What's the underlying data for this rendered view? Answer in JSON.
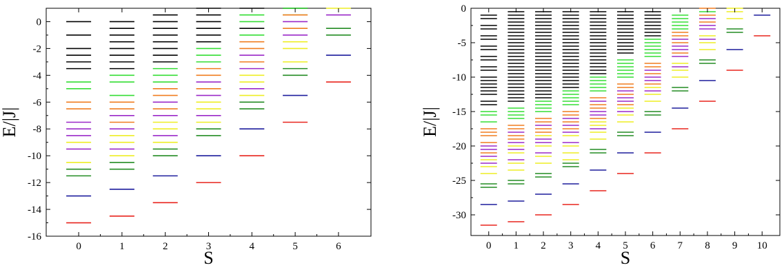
{
  "chart_data": [
    {
      "type": "scatter",
      "marker": "horizontal-dash",
      "xlabel": "S",
      "ylabel": "E/|J|",
      "xlim": [
        -0.75,
        6.75
      ],
      "ylim": [
        -16,
        1
      ],
      "xticks": [
        0,
        1,
        2,
        3,
        4,
        5,
        6
      ],
      "yticks": [
        0,
        -2,
        -4,
        -6,
        -8,
        -10,
        -12,
        -14,
        -16
      ],
      "grid": false,
      "colors": {
        "black": "#000000",
        "green": "#33dd33",
        "darkgreen": "#228b22",
        "orange": "#f07c1e",
        "yellow": "#eeee22",
        "purple": "#9a28c8",
        "blue": "#1c1c9c",
        "red": "#e8231c"
      },
      "levels": [
        {
          "S": 0,
          "black": [
            0,
            -1,
            -2,
            -2.5,
            -3,
            -3.5
          ],
          "green": [
            -4.5,
            -5
          ],
          "orange": [
            -6,
            -6.5
          ],
          "purple": [
            -7.5,
            -8,
            -8.5,
            -9.5
          ],
          "yellow": [
            -9,
            -10.5
          ],
          "darkgreen": [
            -11,
            -11.5
          ],
          "blue": [
            -13
          ],
          "red": [
            -15
          ]
        },
        {
          "S": 1,
          "black": [
            0,
            -0.5,
            -1,
            -1.5,
            -2,
            -2.5,
            -3,
            -3.5
          ],
          "green": [
            -4,
            -4.5,
            -5.5
          ],
          "orange": [
            -6,
            -6.5,
            -7.5
          ],
          "purple": [
            -7,
            -8,
            -9.5
          ],
          "yellow": [
            -8.5,
            -9,
            -10
          ],
          "darkgreen": [
            -10.5,
            -11
          ],
          "blue": [
            -12.5
          ],
          "red": [
            -14.5
          ]
        },
        {
          "S": 2,
          "black": [
            0.5,
            0,
            -0.5,
            -1,
            -1.5,
            -2,
            -2.5,
            -3
          ],
          "green": [
            -3.5,
            -4,
            -4.5
          ],
          "orange": [
            -5,
            -5.5,
            -6.5
          ],
          "purple": [
            -6,
            -7,
            -8.5
          ],
          "yellow": [
            -7.5,
            -8,
            -9
          ],
          "darkgreen": [
            -9.5,
            -10
          ],
          "blue": [
            -11.5
          ],
          "red": [
            -13.5
          ]
        },
        {
          "S": 3,
          "black": [
            1,
            0.5,
            0,
            -0.5,
            -1,
            -1.5
          ],
          "green": [
            -2,
            -2.5,
            -3
          ],
          "orange": [
            -3.5,
            -4,
            -5
          ],
          "purple": [
            -4.5,
            -5.5,
            -7
          ],
          "yellow": [
            -6,
            -6.5,
            -7.5
          ],
          "darkgreen": [
            -8,
            -8.5
          ],
          "blue": [
            -10
          ],
          "red": [
            -12
          ]
        },
        {
          "S": 4,
          "black": [
            1,
            -0.5
          ],
          "green": [
            0.5,
            0,
            -1
          ],
          "orange": [
            -1.5,
            -2,
            -3
          ],
          "purple": [
            -2.5,
            -3.5,
            -5
          ],
          "yellow": [
            -4,
            -4.5,
            -5.5
          ],
          "darkgreen": [
            -6,
            -6.5
          ],
          "blue": [
            -8
          ],
          "red": [
            -10
          ]
        },
        {
          "S": 5,
          "black": [
            1
          ],
          "green": [
            1,
            0.5
          ],
          "orange": [
            0.5,
            -0.5
          ],
          "purple": [
            0,
            -1
          ],
          "yellow": [
            -1.5,
            -2,
            -3
          ],
          "darkgreen": [
            -3.5,
            -4
          ],
          "blue": [
            -5.5
          ],
          "red": [
            -7.5
          ]
        },
        {
          "S": 6,
          "yellow": [
            1
          ],
          "purple": [
            0.5
          ],
          "darkgreen": [
            -0.5,
            -1
          ],
          "blue": [
            -2.5
          ],
          "red": [
            -4.5
          ]
        }
      ]
    },
    {
      "type": "scatter",
      "marker": "horizontal-dash",
      "xlabel": "S",
      "ylabel": "E/|J|",
      "xlim": [
        -0.65,
        10.65
      ],
      "ylim": [
        -33,
        0
      ],
      "xticks": [
        0,
        1,
        2,
        3,
        4,
        5,
        6,
        7,
        8,
        9,
        10
      ],
      "yticks": [
        0,
        -5,
        -10,
        -15,
        -20,
        -25,
        -30
      ],
      "grid": false,
      "levels": [
        {
          "S": 0,
          "black": [
            -1,
            -1.5,
            -2.5,
            -3,
            -4,
            -4.5,
            -5.5,
            -6,
            -7,
            -7.5,
            -8.5,
            -9,
            -10,
            -10.5,
            -11,
            -11.5,
            -12,
            -12.5,
            -13.5,
            -14
          ],
          "green": [
            -15,
            -15.5,
            -16.5
          ],
          "orange": [
            -17.5,
            -18,
            -18.5,
            -19.5,
            -21
          ],
          "purple": [
            -20,
            -20.5,
            -21.5,
            -22.5
          ],
          "yellow": [
            -22,
            -23,
            -24
          ],
          "darkgreen": [
            -25.5,
            -26
          ],
          "blue": [
            -28.5
          ],
          "red": [
            -31.5
          ]
        },
        {
          "S": 1,
          "black": [
            -0.5,
            -1,
            -1.5,
            -2,
            -2.5,
            -3,
            -3.5,
            -4,
            -4.5,
            -5,
            -5.5,
            -6,
            -6.5,
            -7,
            -7.5,
            -8,
            -8.5,
            -9,
            -9.5,
            -10,
            -10.5,
            -11,
            -11.5,
            -12,
            -12.5,
            -13,
            -13.5
          ],
          "green": [
            -14.5,
            -15,
            -15.5,
            -16
          ],
          "orange": [
            -17,
            -17.5,
            -18.5,
            -19
          ],
          "purple": [
            -18,
            -19.5,
            -20.5,
            -22
          ],
          "yellow": [
            -20,
            -21,
            -22.5,
            -23.5
          ],
          "darkgreen": [
            -25,
            -25.5
          ],
          "blue": [
            -28
          ],
          "red": [
            -31
          ]
        },
        {
          "S": 2,
          "black": [
            -0.5,
            -1,
            -1.5,
            -2,
            -2.5,
            -3,
            -3.5,
            -4,
            -4.5,
            -5,
            -5.5,
            -6,
            -6.5,
            -7,
            -7.5,
            -8,
            -8.5,
            -9,
            -9.5,
            -10,
            -10.5,
            -11,
            -11.5,
            -12,
            -12.5,
            -13
          ],
          "green": [
            -13.5,
            -14,
            -14.5,
            -15
          ],
          "orange": [
            -16,
            -16.5,
            -17.5,
            -18
          ],
          "purple": [
            -17,
            -19,
            -19.5,
            -21
          ],
          "yellow": [
            -18.5,
            -20,
            -21.5,
            -22.5
          ],
          "darkgreen": [
            -24,
            -24.5
          ],
          "blue": [
            -27
          ],
          "red": [
            -30
          ]
        },
        {
          "S": 3,
          "black": [
            -0.5,
            -1,
            -1.5,
            -2,
            -2.5,
            -3,
            -3.5,
            -4,
            -4.5,
            -5,
            -5.5,
            -6,
            -6.5,
            -7,
            -7.5,
            -8,
            -8.5,
            -9,
            -9.5,
            -10,
            -10.5,
            -11,
            -11.5
          ],
          "green": [
            -12,
            -12.5,
            -13,
            -13.5,
            -14
          ],
          "orange": [
            -15,
            -15.5,
            -16.5,
            -17.5
          ],
          "purple": [
            -16,
            -17,
            -18,
            -19.5
          ],
          "yellow": [
            -18.5,
            -20,
            -21,
            -22
          ],
          "darkgreen": [
            -22.5,
            -23
          ],
          "blue": [
            -25.5
          ],
          "red": [
            -28.5
          ]
        },
        {
          "S": 4,
          "black": [
            -0.5,
            -1,
            -1.5,
            -2,
            -2.5,
            -3,
            -3.5,
            -4,
            -4.5,
            -5,
            -5.5,
            -6,
            -6.5,
            -7,
            -7.5,
            -8,
            -8.5,
            -9,
            -9.5
          ],
          "green": [
            -10,
            -10.5,
            -11,
            -11.5,
            -12
          ],
          "orange": [
            -13,
            -14,
            -14.5,
            -16
          ],
          "purple": [
            -13.5,
            -15,
            -15.5,
            -17.5
          ],
          "yellow": [
            -16.5,
            -17,
            -18,
            -19
          ],
          "darkgreen": [
            -20.5,
            -21
          ],
          "blue": [
            -23.5
          ],
          "red": [
            -26.5
          ]
        },
        {
          "S": 5,
          "black": [
            -0.5,
            -1,
            -1.5,
            -2,
            -2.5,
            -3,
            -3.5,
            -4,
            -4.5,
            -5,
            -5.5,
            -6,
            -6.5
          ],
          "green": [
            -7.5,
            -8,
            -8.5,
            -9,
            -9.5,
            -10
          ],
          "orange": [
            -11,
            -11.5,
            -12.5,
            -14
          ],
          "purple": [
            -12,
            -13,
            -13.5,
            -15
          ],
          "yellow": [
            -14.5,
            -15.5,
            -16.5
          ],
          "darkgreen": [
            -18,
            -18.5
          ],
          "blue": [
            -21
          ],
          "red": [
            -24
          ]
        },
        {
          "S": 6,
          "black": [
            -0.5,
            -1,
            -1.5,
            -2,
            -2.5,
            -3,
            -3.5,
            -4
          ],
          "green": [
            -4.5,
            -5,
            -5.5,
            -6,
            -6.5,
            -7
          ],
          "orange": [
            -8,
            -8.5,
            -9.5,
            -11
          ],
          "purple": [
            -9,
            -10,
            -10.5,
            -12
          ],
          "yellow": [
            -11.5,
            -12.5,
            -13.5
          ],
          "darkgreen": [
            -15,
            -15.5
          ],
          "blue": [
            -18
          ],
          "red": [
            -21
          ]
        },
        {
          "S": 7,
          "green": [
            -1,
            -1.5,
            -2,
            -2.5,
            -3
          ],
          "orange": [
            -3.5,
            -4,
            -5,
            -6.5
          ],
          "purple": [
            -4.5,
            -5.5,
            -6,
            -7,
            -8.5
          ],
          "yellow": [
            -8,
            -9,
            -10
          ],
          "darkgreen": [
            -11.5,
            -12
          ],
          "blue": [
            -14.5
          ],
          "red": [
            -17.5
          ]
        },
        {
          "S": 8,
          "orange": [
            0,
            -1,
            -2
          ],
          "green": [
            -0.5
          ],
          "purple": [
            -1.5,
            -2.5,
            -3,
            -4.5
          ],
          "yellow": [
            -4,
            -5,
            -6
          ],
          "darkgreen": [
            -7.5,
            -8
          ],
          "blue": [
            -10.5
          ],
          "red": [
            -13.5
          ]
        },
        {
          "S": 9,
          "yellow": [
            0,
            -0.5,
            -1.5
          ],
          "darkgreen": [
            -3,
            -3.5
          ],
          "blue": [
            -6
          ],
          "red": [
            -9
          ]
        },
        {
          "S": 10,
          "blue": [
            -1
          ],
          "red": [
            -4
          ]
        }
      ]
    }
  ]
}
